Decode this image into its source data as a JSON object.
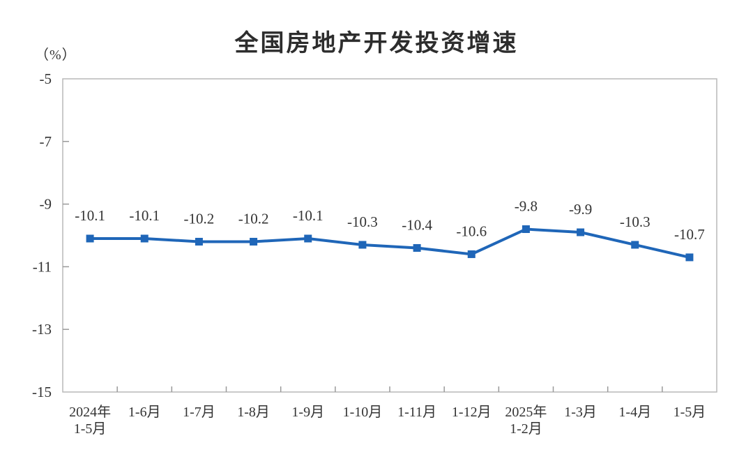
{
  "header": {
    "title": "全国房地产开发投资增速"
  },
  "chart_data": {
    "type": "line",
    "title": "全国房地产开发投资增速",
    "ylabel": "（%）",
    "categories": [
      [
        "2024年",
        "1-5月"
      ],
      [
        "1-6月"
      ],
      [
        "1-7月"
      ],
      [
        "1-8月"
      ],
      [
        "1-9月"
      ],
      [
        "1-10月"
      ],
      [
        "1-11月"
      ],
      [
        "1-12月"
      ],
      [
        "2025年",
        "1-2月"
      ],
      [
        "1-3月"
      ],
      [
        "1-4月"
      ],
      [
        "1-5月"
      ]
    ],
    "values": [
      -10.1,
      -10.1,
      -10.2,
      -10.2,
      -10.1,
      -10.3,
      -10.4,
      -10.6,
      -9.8,
      -9.9,
      -10.3,
      -10.7
    ],
    "data_labels": [
      "-10.1",
      "-10.1",
      "-10.2",
      "-10.2",
      "-10.1",
      "-10.3",
      "-10.4",
      "-10.6",
      "-9.8",
      "-9.9",
      "-10.3",
      "-10.7"
    ],
    "ylim": [
      -15,
      -5
    ],
    "yticks": [
      -5,
      -7,
      -9,
      -11,
      -13,
      -15
    ],
    "grid": false,
    "legend": "none",
    "line_color": "#1f66b8",
    "marker": "square",
    "marker_color": "#1f66b8",
    "text_color": "#333333",
    "axis_color": "#b8b8b8",
    "tick_color": "#999999"
  }
}
